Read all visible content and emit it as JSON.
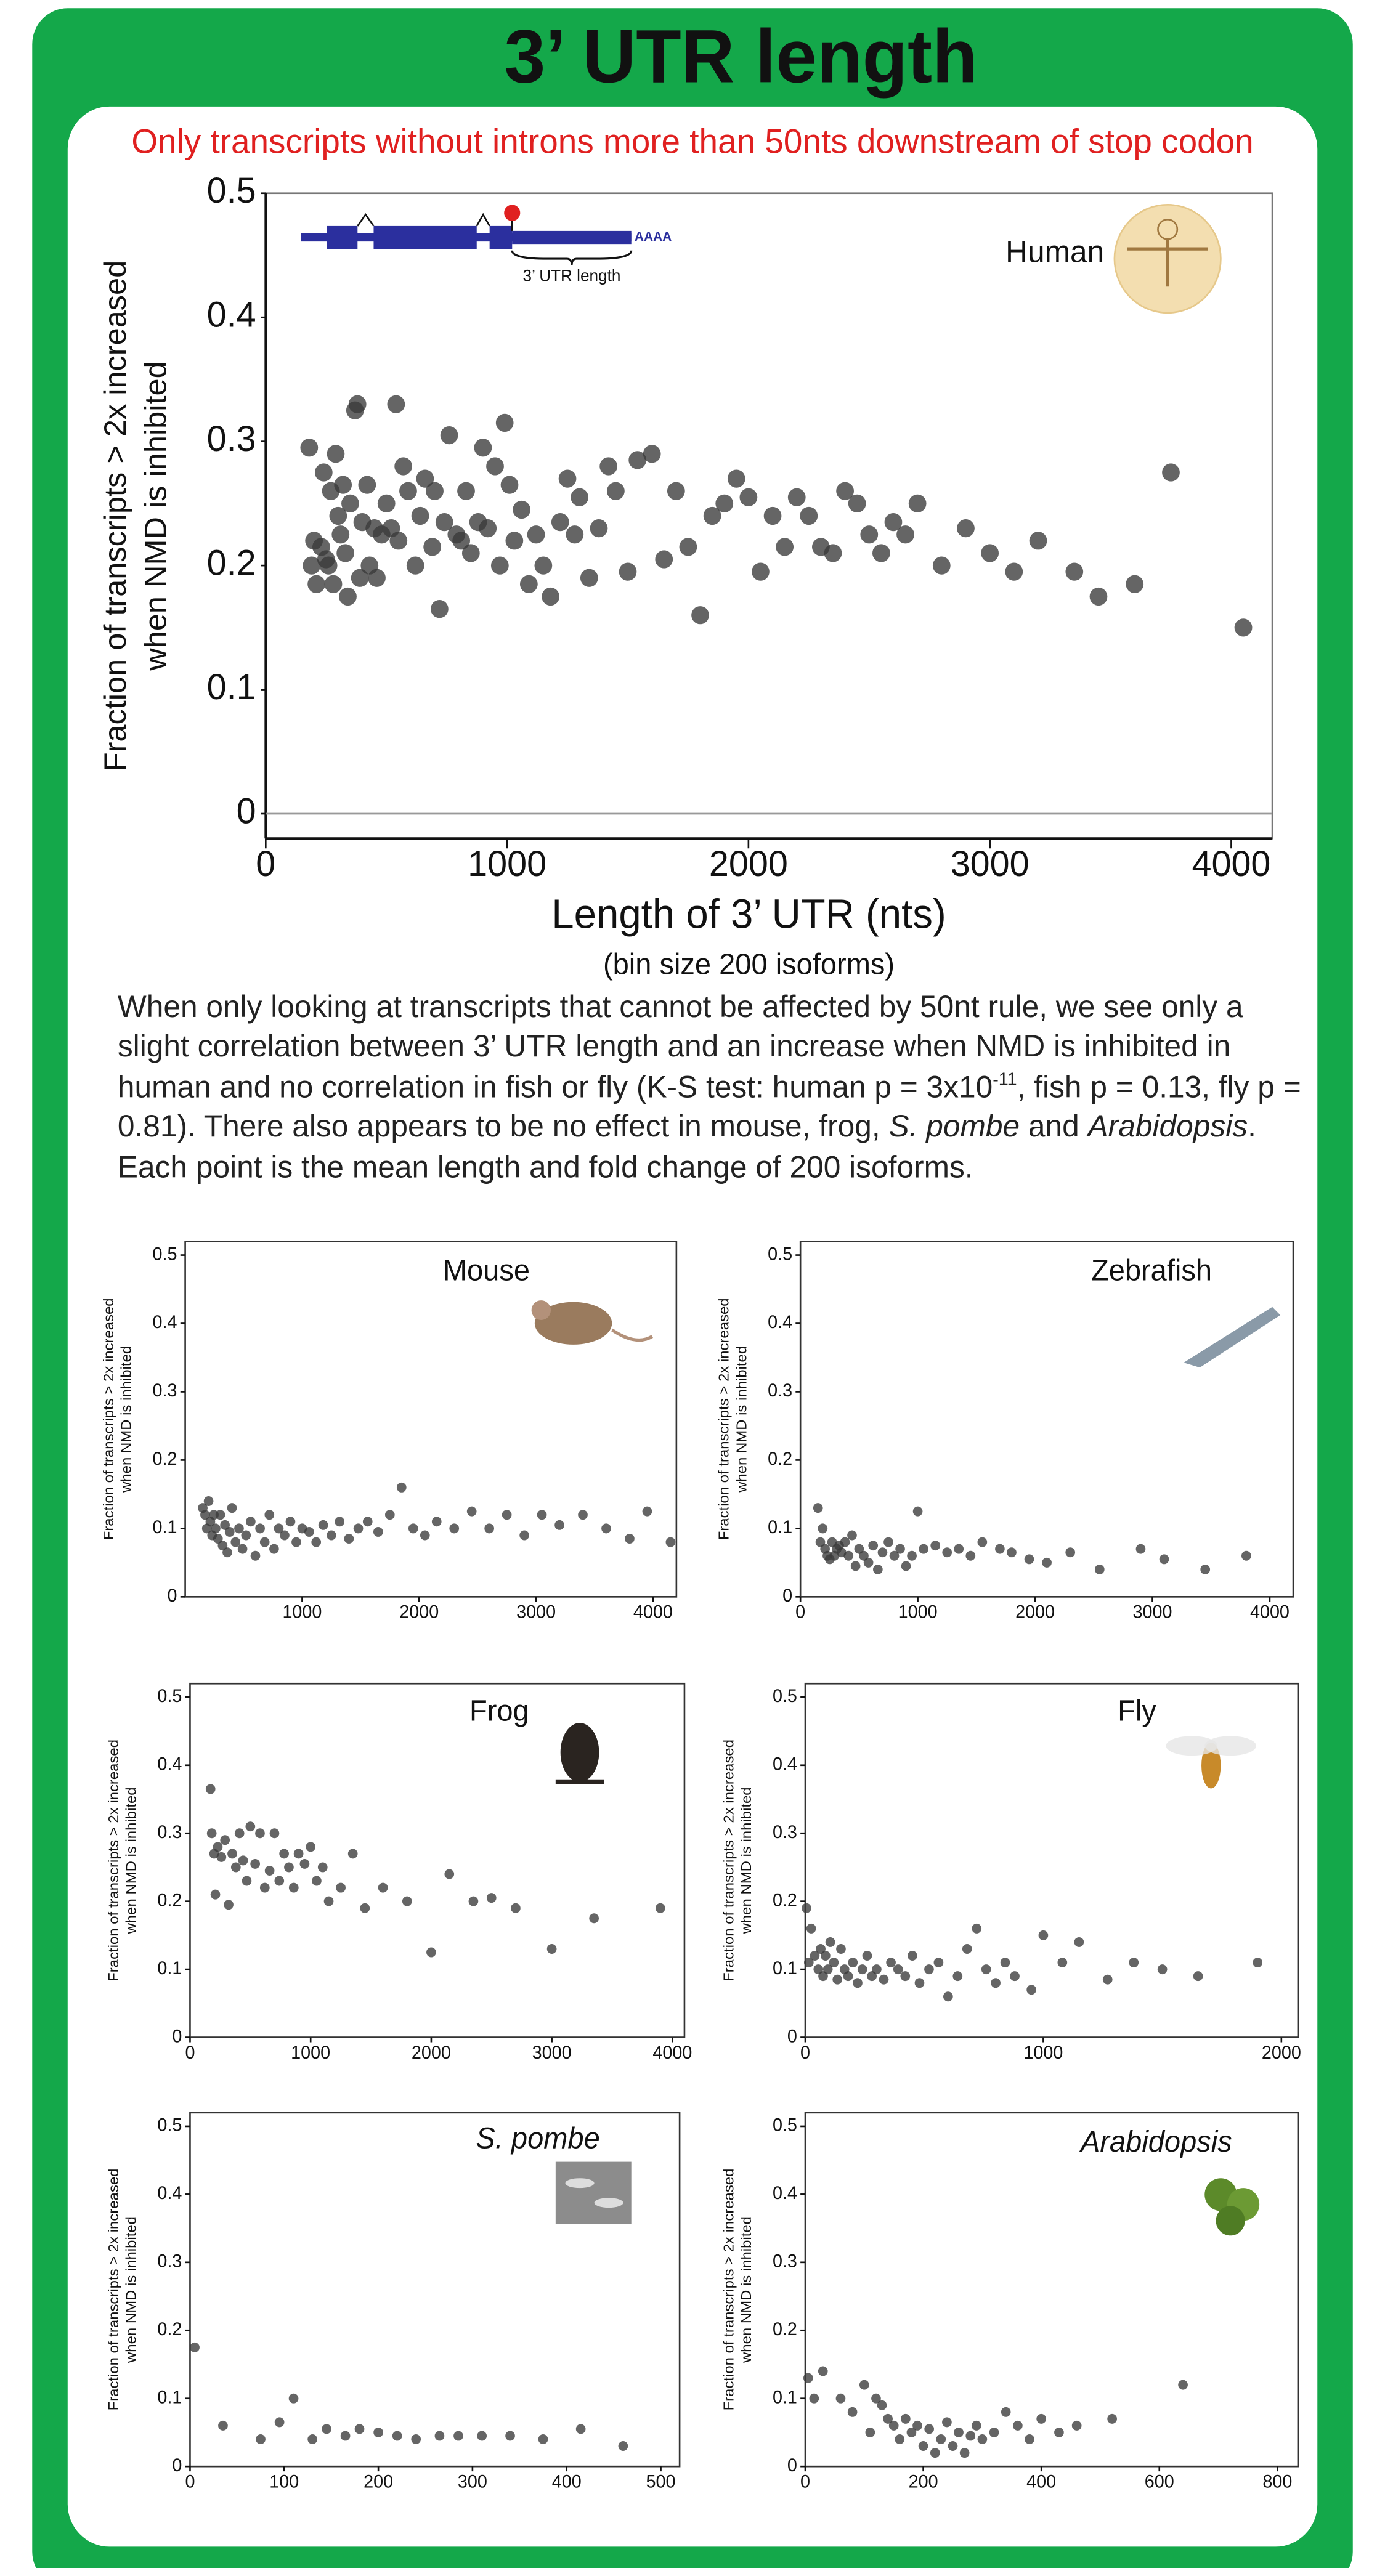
{
  "header": {
    "title": "3’ UTR length",
    "subtitle": "Only transcripts without introns more than 50nts downstream of stop codon"
  },
  "diagram": {
    "utr_label": "3’ UTR length",
    "polya": "AAAA"
  },
  "description": [
    {
      "text": "When only looking at transcripts that cannot be affected by 50nt rule, we see only a slight correlation between 3’ UTR length and an increase when NMD is inhibited in human and no correlation in fish or fly (K-S test: human p = 3x10",
      "style": "normal"
    },
    {
      "text": "-11",
      "style": "superscript"
    },
    {
      "text": ", fish p = 0.13, fly p = 0.81). There also appears to be no effect in mouse, frog, ",
      "style": "normal"
    },
    {
      "text": "S. pombe",
      "style": "italic"
    },
    {
      "text": " and ",
      "style": "normal"
    },
    {
      "text": "Arabidopsis",
      "style": "italic"
    },
    {
      "text": ". Each point is the mean length and fold change of 200 isoforms.",
      "style": "normal"
    }
  ],
  "chart_data": [
    {
      "type": "scatter",
      "annotation": "Human",
      "annotation_italic": false,
      "xlabel": "Length of 3’ UTR (nts)",
      "xlabel_note": "(bin size 200 isoforms)",
      "ylabel": [
        "Fraction of transcripts > 2x increased",
        "when NMD is inhibited"
      ],
      "color": "#3a3a3a",
      "zero_line": true,
      "xlim": [
        0,
        4170
      ],
      "ylim": [
        -0.02,
        0.5
      ],
      "xticks": [
        0,
        1000,
        2000,
        3000,
        4000
      ],
      "yticks": [
        0,
        0.1,
        0.2,
        0.3,
        0.4,
        0.5
      ],
      "x": [
        180,
        190,
        200,
        210,
        230,
        240,
        250,
        260,
        270,
        280,
        290,
        300,
        310,
        320,
        330,
        340,
        350,
        370,
        380,
        390,
        400,
        420,
        430,
        450,
        460,
        480,
        500,
        520,
        540,
        550,
        570,
        590,
        620,
        640,
        660,
        690,
        700,
        720,
        740,
        760,
        790,
        810,
        830,
        850,
        880,
        900,
        920,
        950,
        970,
        990,
        1010,
        1030,
        1060,
        1090,
        1120,
        1150,
        1180,
        1220,
        1250,
        1280,
        1300,
        1340,
        1380,
        1420,
        1450,
        1500,
        1540,
        1600,
        1650,
        1700,
        1750,
        1800,
        1850,
        1900,
        1950,
        2000,
        2050,
        2100,
        2150,
        2200,
        2250,
        2300,
        2350,
        2400,
        2450,
        2500,
        2550,
        2600,
        2650,
        2700,
        2800,
        2900,
        3000,
        3100,
        3200,
        3350,
        3450,
        3600,
        3750,
        4050
      ],
      "y": [
        0.295,
        0.2,
        0.22,
        0.185,
        0.215,
        0.275,
        0.205,
        0.2,
        0.26,
        0.185,
        0.29,
        0.24,
        0.225,
        0.265,
        0.21,
        0.175,
        0.25,
        0.325,
        0.33,
        0.19,
        0.235,
        0.265,
        0.2,
        0.23,
        0.19,
        0.225,
        0.25,
        0.23,
        0.33,
        0.22,
        0.28,
        0.26,
        0.2,
        0.24,
        0.27,
        0.215,
        0.26,
        0.165,
        0.235,
        0.305,
        0.225,
        0.22,
        0.26,
        0.21,
        0.235,
        0.295,
        0.23,
        0.28,
        0.2,
        0.315,
        0.265,
        0.22,
        0.245,
        0.185,
        0.225,
        0.2,
        0.175,
        0.235,
        0.27,
        0.225,
        0.255,
        0.19,
        0.23,
        0.28,
        0.26,
        0.195,
        0.285,
        0.29,
        0.205,
        0.26,
        0.215,
        0.16,
        0.24,
        0.25,
        0.27,
        0.255,
        0.195,
        0.24,
        0.215,
        0.255,
        0.24,
        0.215,
        0.21,
        0.26,
        0.25,
        0.225,
        0.21,
        0.235,
        0.225,
        0.25,
        0.2,
        0.23,
        0.21,
        0.195,
        0.22,
        0.195,
        0.175,
        0.185,
        0.275,
        0.15
      ]
    },
    {
      "type": "scatter",
      "annotation": "Mouse",
      "annotation_italic": false,
      "ylabel": [
        "Fraction of transcripts > 2x increased",
        "when NMD is inhibited"
      ],
      "color": "#3a3a3a",
      "xlim": [
        0,
        4200
      ],
      "ylim": [
        0,
        0.52
      ],
      "xticks": [
        1000,
        2000,
        3000,
        4000
      ],
      "yticks": [
        0,
        0.1,
        0.2,
        0.3,
        0.4,
        0.5
      ],
      "x": [
        150,
        170,
        185,
        200,
        215,
        230,
        245,
        260,
        280,
        300,
        320,
        340,
        360,
        380,
        400,
        430,
        460,
        490,
        520,
        560,
        600,
        640,
        680,
        720,
        760,
        800,
        850,
        900,
        950,
        1000,
        1060,
        1120,
        1180,
        1250,
        1320,
        1400,
        1480,
        1560,
        1650,
        1750,
        1850,
        1950,
        2050,
        2150,
        2300,
        2450,
        2600,
        2750,
        2900,
        3050,
        3200,
        3400,
        3600,
        3800,
        3950,
        4150
      ],
      "y": [
        0.13,
        0.12,
        0.1,
        0.14,
        0.11,
        0.09,
        0.12,
        0.1,
        0.085,
        0.12,
        0.075,
        0.105,
        0.065,
        0.095,
        0.13,
        0.08,
        0.1,
        0.07,
        0.09,
        0.11,
        0.06,
        0.1,
        0.08,
        0.12,
        0.07,
        0.1,
        0.09,
        0.11,
        0.08,
        0.1,
        0.095,
        0.08,
        0.105,
        0.09,
        0.11,
        0.085,
        0.1,
        0.11,
        0.095,
        0.12,
        0.16,
        0.1,
        0.09,
        0.11,
        0.1,
        0.125,
        0.1,
        0.12,
        0.09,
        0.12,
        0.105,
        0.12,
        0.1,
        0.085,
        0.125,
        0.08
      ]
    },
    {
      "type": "scatter",
      "annotation": "Zebrafish",
      "annotation_italic": false,
      "ylabel": [
        "Fraction of transcripts > 2x increased",
        "when NMD is inhibited"
      ],
      "color": "#3a3a3a",
      "xlim": [
        0,
        4200
      ],
      "ylim": [
        0,
        0.52
      ],
      "xticks": [
        0,
        1000,
        2000,
        3000,
        4000
      ],
      "yticks": [
        0,
        0.1,
        0.2,
        0.3,
        0.4,
        0.5
      ],
      "x": [
        150,
        170,
        190,
        210,
        230,
        250,
        270,
        290,
        310,
        330,
        350,
        380,
        410,
        440,
        470,
        500,
        540,
        580,
        620,
        660,
        700,
        750,
        800,
        850,
        900,
        950,
        1000,
        1050,
        1150,
        1250,
        1350,
        1450,
        1550,
        1700,
        1800,
        1950,
        2100,
        2300,
        2550,
        2900,
        3100,
        3450,
        3800
      ],
      "y": [
        0.13,
        0.08,
        0.1,
        0.07,
        0.06,
        0.055,
        0.08,
        0.06,
        0.07,
        0.075,
        0.065,
        0.08,
        0.06,
        0.09,
        0.045,
        0.07,
        0.06,
        0.05,
        0.075,
        0.04,
        0.065,
        0.08,
        0.06,
        0.07,
        0.045,
        0.06,
        0.125,
        0.07,
        0.075,
        0.065,
        0.07,
        0.06,
        0.08,
        0.07,
        0.065,
        0.055,
        0.05,
        0.065,
        0.04,
        0.07,
        0.055,
        0.04,
        0.06
      ]
    },
    {
      "type": "scatter",
      "annotation": "Frog",
      "annotation_italic": false,
      "ylabel": [
        "Fraction of transcripts > 2x increased",
        "when NMD is inhibited"
      ],
      "color": "#3a3a3a",
      "xlim": [
        0,
        4100
      ],
      "ylim": [
        0,
        0.52
      ],
      "xticks": [
        0,
        1000,
        2000,
        3000,
        4000
      ],
      "yticks": [
        0,
        0.1,
        0.2,
        0.3,
        0.4,
        0.5
      ],
      "x": [
        170,
        180,
        200,
        210,
        230,
        260,
        290,
        320,
        350,
        380,
        410,
        440,
        470,
        500,
        540,
        580,
        620,
        660,
        700,
        740,
        780,
        820,
        860,
        900,
        950,
        1000,
        1050,
        1100,
        1150,
        1250,
        1350,
        1450,
        1600,
        1800,
        2000,
        2150,
        2350,
        2500,
        2700,
        3000,
        3350,
        3900
      ],
      "y": [
        0.365,
        0.3,
        0.27,
        0.21,
        0.28,
        0.265,
        0.29,
        0.195,
        0.27,
        0.25,
        0.3,
        0.26,
        0.23,
        0.31,
        0.255,
        0.3,
        0.22,
        0.245,
        0.3,
        0.23,
        0.27,
        0.25,
        0.22,
        0.27,
        0.255,
        0.28,
        0.23,
        0.25,
        0.2,
        0.22,
        0.27,
        0.19,
        0.22,
        0.2,
        0.125,
        0.24,
        0.2,
        0.205,
        0.19,
        0.13,
        0.175,
        0.19
      ]
    },
    {
      "type": "scatter",
      "annotation": "Fly",
      "annotation_italic": false,
      "ylabel": [
        "Fraction of transcripts > 2x increased",
        "when NMD is inhibited"
      ],
      "color": "#3a3a3a",
      "xlim": [
        0,
        2070
      ],
      "ylim": [
        0,
        0.52
      ],
      "xticks": [
        0,
        1000,
        2000
      ],
      "yticks": [
        0,
        0.1,
        0.2,
        0.3,
        0.4,
        0.5
      ],
      "x": [
        5,
        15,
        25,
        40,
        55,
        65,
        75,
        85,
        95,
        105,
        120,
        135,
        150,
        165,
        180,
        200,
        220,
        240,
        260,
        280,
        300,
        330,
        360,
        390,
        420,
        450,
        480,
        520,
        560,
        600,
        640,
        680,
        720,
        760,
        800,
        840,
        880,
        950,
        1000,
        1080,
        1150,
        1270,
        1380,
        1500,
        1650,
        1900
      ],
      "y": [
        0.19,
        0.11,
        0.16,
        0.12,
        0.1,
        0.13,
        0.09,
        0.12,
        0.1,
        0.14,
        0.11,
        0.085,
        0.13,
        0.1,
        0.09,
        0.11,
        0.08,
        0.1,
        0.12,
        0.09,
        0.1,
        0.085,
        0.11,
        0.1,
        0.09,
        0.12,
        0.08,
        0.1,
        0.11,
        0.06,
        0.09,
        0.13,
        0.16,
        0.1,
        0.08,
        0.11,
        0.09,
        0.07,
        0.15,
        0.11,
        0.14,
        0.085,
        0.11,
        0.1,
        0.09,
        0.11
      ]
    },
    {
      "type": "scatter",
      "annotation": "S. pombe",
      "annotation_italic": true,
      "ylabel": [
        "Fraction of transcripts > 2x increased",
        "when NMD is inhibited"
      ],
      "color": "#3a3a3a",
      "xlim": [
        0,
        520
      ],
      "ylim": [
        0,
        0.52
      ],
      "xticks": [
        0,
        100,
        200,
        300,
        400,
        500
      ],
      "yticks": [
        0,
        0.1,
        0.2,
        0.3,
        0.4,
        0.5
      ],
      "x": [
        5,
        35,
        75,
        95,
        110,
        130,
        145,
        165,
        180,
        200,
        220,
        240,
        265,
        285,
        310,
        340,
        375,
        415,
        460
      ],
      "y": [
        0.175,
        0.06,
        0.04,
        0.065,
        0.1,
        0.04,
        0.055,
        0.045,
        0.055,
        0.05,
        0.045,
        0.04,
        0.045,
        0.045,
        0.045,
        0.045,
        0.04,
        0.055,
        0.03
      ]
    },
    {
      "type": "scatter",
      "annotation": "Arabidopsis",
      "annotation_italic": true,
      "ylabel": [
        "Fraction of transcripts > 2x increased",
        "when NMD is inhibited"
      ],
      "color": "#3a3a3a",
      "xlim": [
        0,
        835
      ],
      "ylim": [
        0,
        0.52
      ],
      "xticks": [
        0,
        200,
        400,
        600,
        800
      ],
      "yticks": [
        0,
        0.1,
        0.2,
        0.3,
        0.4,
        0.5
      ],
      "x": [
        5,
        15,
        30,
        60,
        80,
        100,
        110,
        120,
        130,
        140,
        150,
        160,
        170,
        180,
        190,
        200,
        210,
        220,
        230,
        240,
        250,
        260,
        270,
        280,
        290,
        300,
        320,
        340,
        360,
        380,
        400,
        430,
        460,
        520,
        640
      ],
      "y": [
        0.13,
        0.1,
        0.14,
        0.1,
        0.08,
        0.12,
        0.05,
        0.1,
        0.09,
        0.07,
        0.06,
        0.04,
        0.07,
        0.05,
        0.06,
        0.03,
        0.055,
        0.02,
        0.04,
        0.065,
        0.03,
        0.05,
        0.02,
        0.045,
        0.06,
        0.04,
        0.05,
        0.08,
        0.06,
        0.04,
        0.07,
        0.05,
        0.06,
        0.07,
        0.12
      ]
    }
  ]
}
